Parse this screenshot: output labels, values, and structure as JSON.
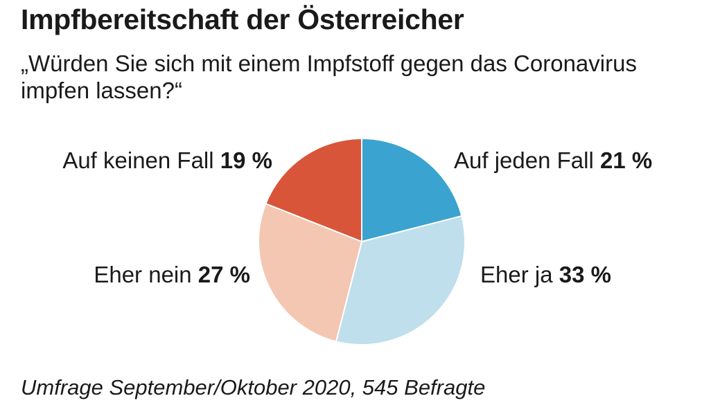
{
  "chart_data": {
    "type": "pie",
    "title": "Impfbereitschaft der Österreicher",
    "subtitle": "„Würden Sie sich mit einem Impfstoff gegen das Coronavirus impfen lassen?“",
    "slices": [
      {
        "label": "Auf jeden Fall",
        "value": 21,
        "value_label": "21 %",
        "color": "#3aa3cf"
      },
      {
        "label": "Eher ja",
        "value": 33,
        "value_label": "33 %",
        "color": "#bfdfec"
      },
      {
        "label": "Eher nein",
        "value": 27,
        "value_label": "27 %",
        "color": "#f4c7b2"
      },
      {
        "label": "Auf keinen Fall",
        "value": 19,
        "value_label": "19 %",
        "color": "#d85539"
      }
    ],
    "start": "12 o'clock",
    "direction": "clockwise",
    "source_note": "Umfrage September/Oktober 2020, 545 Befragte"
  }
}
